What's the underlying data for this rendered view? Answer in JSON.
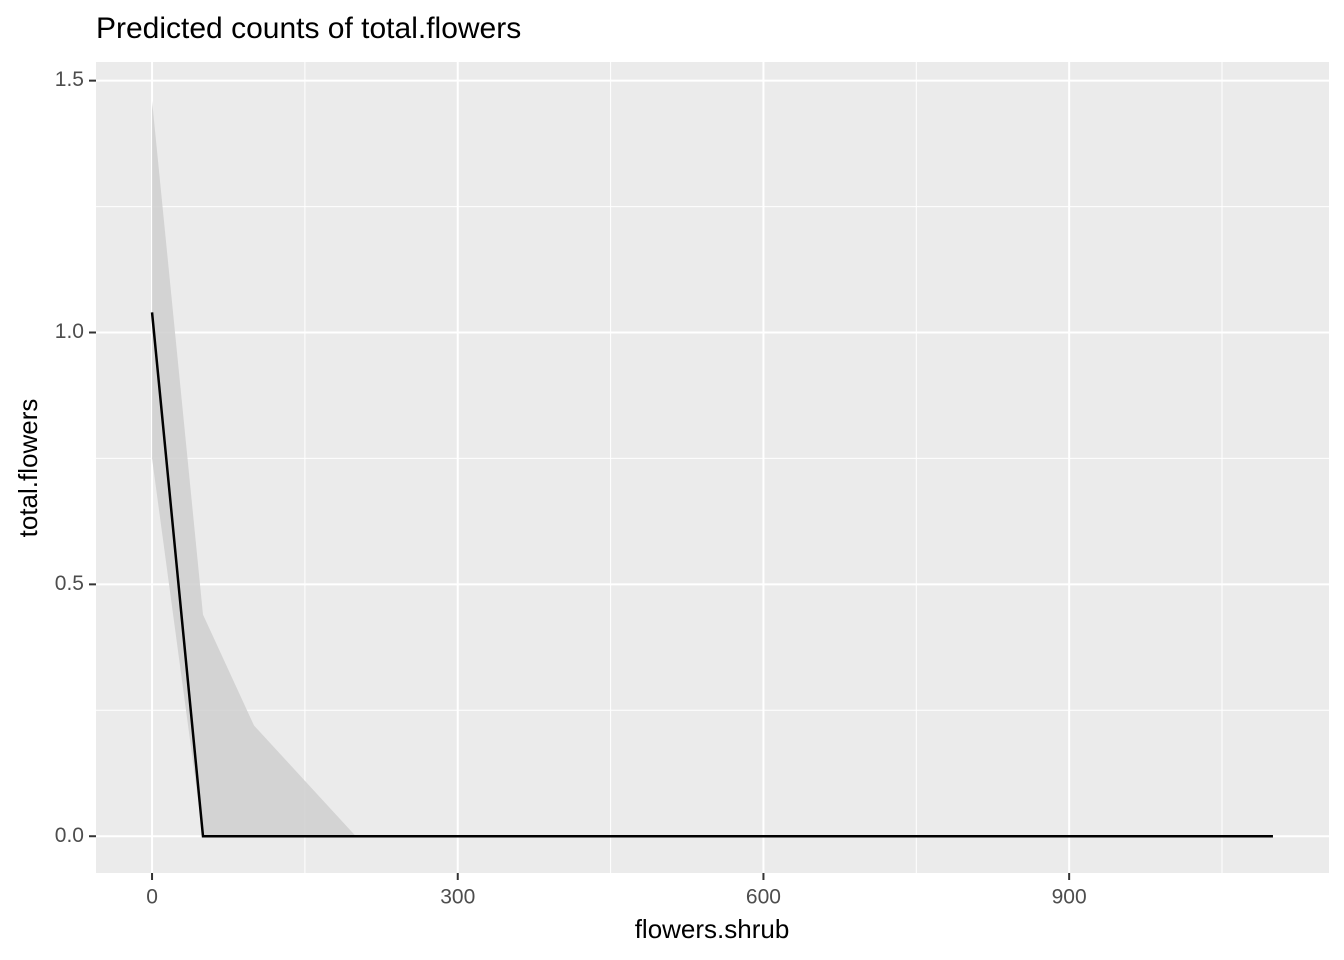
{
  "chart_data": {
    "type": "line",
    "title": "Predicted counts of total.flowers",
    "x_label": "flowers.shrub",
    "y_label": "total.flowers",
    "x": [
      0,
      50,
      100,
      200,
      1100
    ],
    "values": [
      1.04,
      0,
      0,
      0,
      0
    ],
    "ci_low": [
      0.75,
      0,
      0,
      0,
      0
    ],
    "ci_high": [
      1.46,
      0.44,
      0.22,
      0,
      0
    ],
    "color": "#000000",
    "ribbon_color": "#cfcfcf",
    "xlim": [
      -55,
      1155
    ],
    "ylim": [
      -0.073,
      1.537
    ],
    "xticks": [
      0,
      300,
      600,
      900
    ],
    "x_minor_ticks": [
      150,
      450,
      750,
      1050
    ],
    "yticks": [
      {
        "value": 0,
        "label": "0.0"
      },
      0.5,
      {
        "value": 1,
        "label": "1.0"
      },
      1.5
    ],
    "y_minor_ticks": [
      0.25,
      0.75,
      1.25
    ],
    "grid": true
  }
}
